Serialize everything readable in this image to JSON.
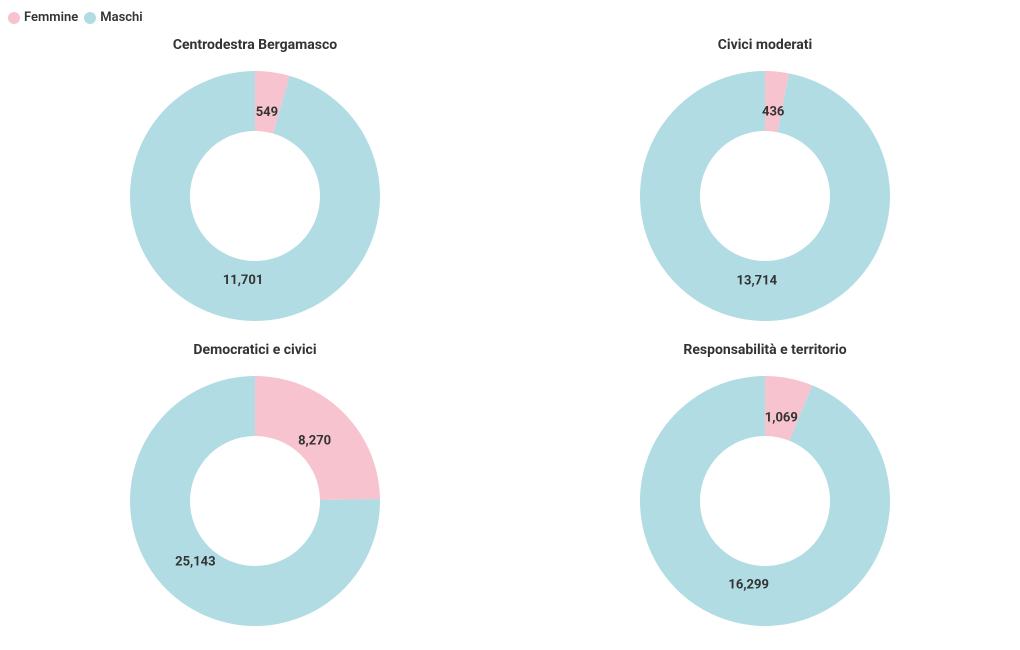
{
  "legend": {
    "items": [
      {
        "label": "Femmine",
        "color": "#f7c3cf"
      },
      {
        "label": "Maschi",
        "color": "#b1dce3"
      }
    ],
    "label_color": "#333333",
    "label_fontsize": 13
  },
  "chart_style": {
    "type": "donut",
    "outer_radius": 125,
    "inner_radius": 65,
    "svg_size": 280,
    "background_color": "#ffffff",
    "title_fontsize": 14,
    "title_color": "#333333",
    "value_label_fontsize": 13,
    "value_label_color": "#333333",
    "start_angle_deg": 0,
    "label_offset_from_inner": 20
  },
  "panels": [
    {
      "title": "Centrodestra Bergamasco",
      "slices": [
        {
          "name": "Femmine",
          "value": 549,
          "label": "549",
          "color": "#f7c3cf"
        },
        {
          "name": "Maschi",
          "value": 11701,
          "label": "11,701",
          "color": "#b1dce3"
        }
      ]
    },
    {
      "title": "Civici moderati",
      "slices": [
        {
          "name": "Femmine",
          "value": 436,
          "label": "436",
          "color": "#f7c3cf"
        },
        {
          "name": "Maschi",
          "value": 13714,
          "label": "13,714",
          "color": "#b1dce3"
        }
      ]
    },
    {
      "title": "Democratici e civici",
      "slices": [
        {
          "name": "Femmine",
          "value": 8270,
          "label": "8,270",
          "color": "#f7c3cf"
        },
        {
          "name": "Maschi",
          "value": 25143,
          "label": "25,143",
          "color": "#b1dce3"
        }
      ]
    },
    {
      "title": "Responsabilità e territorio",
      "slices": [
        {
          "name": "Femmine",
          "value": 1069,
          "label": "1,069",
          "color": "#f7c3cf"
        },
        {
          "name": "Maschi",
          "value": 16299,
          "label": "16,299",
          "color": "#b1dce3"
        }
      ]
    }
  ]
}
